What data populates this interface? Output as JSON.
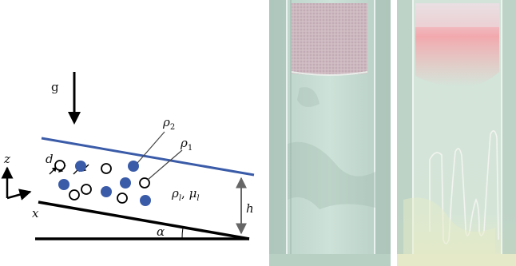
{
  "schematic": {
    "gravity_label": "g",
    "axis_z": "z",
    "axis_x": "x",
    "diameter_label": "d",
    "density_heavy": {
      "base": "ρ",
      "sub": "2"
    },
    "density_light": {
      "base": "ρ",
      "sub": "1"
    },
    "fluid_props": {
      "rho": "ρ",
      "rho_sub": "l",
      "sep": ", ",
      "mu": "μ",
      "mu_sub": "l"
    },
    "height_label": "h",
    "angle_label": "α",
    "colors": {
      "free_surface": "#3a5ba8",
      "heavy_particle": "#3a5ba8",
      "light_particle": "#ffffff",
      "wall": "#000000"
    }
  },
  "photos": [
    {
      "name": "photo-initial",
      "description_colors": {
        "fluid": "#c6dcd2",
        "suspension": "#cdb7bf"
      }
    },
    {
      "name": "photo-fingering",
      "description_colors": {
        "fluid": "#cfe2d6",
        "suspension": "#f0a3a8"
      }
    }
  ]
}
